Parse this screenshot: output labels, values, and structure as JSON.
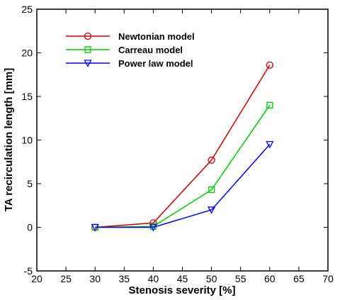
{
  "chart_data": {
    "type": "line",
    "xlabel": "Stenosis severity [%]",
    "ylabel": "TA recirculation length [mm]",
    "xlim": [
      20,
      70
    ],
    "ylim": [
      -5,
      25
    ],
    "xticks": [
      20,
      25,
      30,
      35,
      40,
      45,
      50,
      55,
      60,
      65,
      70
    ],
    "yticks": [
      -5,
      0,
      5,
      10,
      15,
      20,
      25
    ],
    "grid": false,
    "legend_position": "top-left",
    "x": [
      30,
      40,
      50,
      60
    ],
    "series": [
      {
        "name": "Newtonian model",
        "values": [
          0.0,
          0.5,
          7.7,
          18.6
        ],
        "color": "#cc0000",
        "marker": "circle"
      },
      {
        "name": "Carreau model",
        "values": [
          0.0,
          0.1,
          4.3,
          14.0
        ],
        "color": "#00cc00",
        "marker": "square"
      },
      {
        "name": "Power law model",
        "values": [
          0.0,
          0.0,
          2.0,
          9.5
        ],
        "color": "#0000ff",
        "marker": "triangle-down"
      }
    ]
  }
}
